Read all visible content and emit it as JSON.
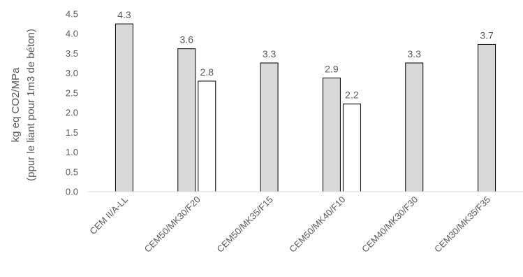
{
  "chart_data": {
    "type": "bar",
    "categories": [
      "CEM II/A-LL",
      "CEM50/MK30/F20",
      "CEM50/MK35/F15",
      "CEM50/MK40/F10",
      "CEM40/MK30/F30",
      "CEM30/MK35/F35"
    ],
    "series": [
      {
        "values": [
          4.25,
          3.62,
          3.26,
          2.88,
          3.26,
          3.73
        ],
        "labels": [
          "4.3",
          "3.6",
          "3.3",
          "2.9",
          "3.3",
          "3.7"
        ],
        "fill": "#d9d9d9"
      },
      {
        "values": [
          null,
          2.8,
          null,
          2.22,
          null,
          null
        ],
        "labels": [
          null,
          "2.8",
          null,
          "2.2",
          null,
          null
        ],
        "fill": "#ffffff"
      }
    ],
    "ylabel_lines": [
      "kg eq CO2/MPa",
      "(ppur le liant pour 1m3 de béton)"
    ],
    "ylim": [
      0,
      4.5
    ],
    "yticks": [
      "0.0",
      "0.5",
      "1.0",
      "1.5",
      "2.0",
      "2.5",
      "3.0",
      "3.5",
      "4.0",
      "4.5"
    ],
    "grid": false,
    "colors": {
      "bar_stroke": "#000000",
      "axis": "#d9d9d9",
      "text": "#595959"
    }
  }
}
